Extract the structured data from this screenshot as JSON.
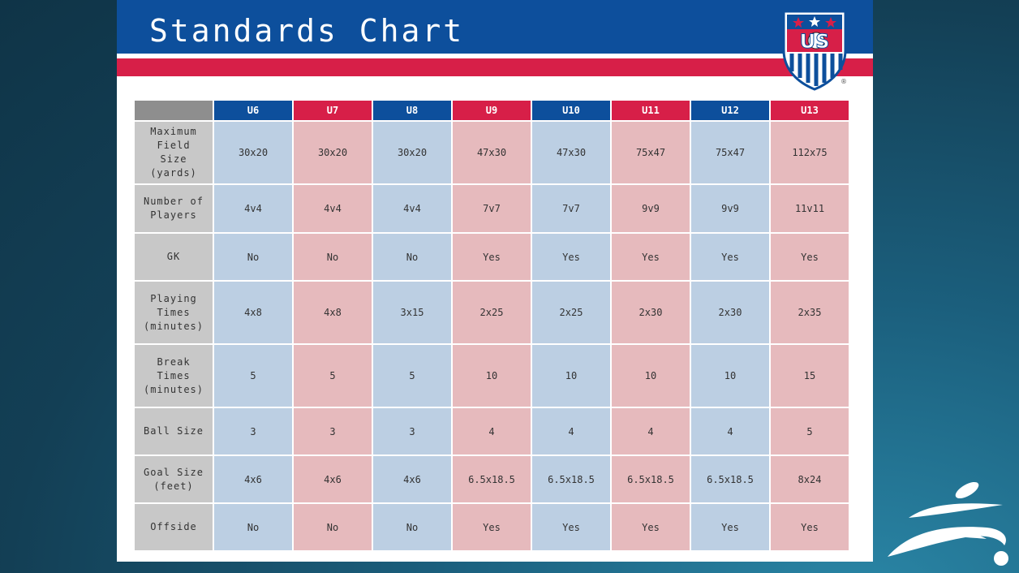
{
  "title": "Standards Chart",
  "crest": {
    "text": "US",
    "registered": "®"
  },
  "table": {
    "columns": [
      "U6",
      "U7",
      "U8",
      "U9",
      "U10",
      "U11",
      "U12",
      "U13"
    ],
    "rows": [
      {
        "label": "Maximum\nField\nSize\n(yards)",
        "values": [
          "30x20",
          "30x20",
          "30x20",
          "47x30",
          "47x30",
          "75x47",
          "75x47",
          "112x75"
        ]
      },
      {
        "label": "Number of\nPlayers",
        "values": [
          "4v4",
          "4v4",
          "4v4",
          "7v7",
          "7v7",
          "9v9",
          "9v9",
          "11v11"
        ]
      },
      {
        "label": "GK",
        "values": [
          "No",
          "No",
          "No",
          "Yes",
          "Yes",
          "Yes",
          "Yes",
          "Yes"
        ]
      },
      {
        "label": "Playing\nTimes\n(minutes)",
        "values": [
          "4x8",
          "4x8",
          "3x15",
          "2x25",
          "2x25",
          "2x30",
          "2x30",
          "2x35"
        ]
      },
      {
        "label": "Break\nTimes\n(minutes)",
        "values": [
          "5",
          "5",
          "5",
          "10",
          "10",
          "10",
          "10",
          "15"
        ]
      },
      {
        "label": "Ball Size",
        "values": [
          "3",
          "3",
          "3",
          "4",
          "4",
          "4",
          "4",
          "5"
        ]
      },
      {
        "label": "Goal Size\n(feet)",
        "values": [
          "4x6",
          "4x6",
          "4x6",
          "6.5x18.5",
          "6.5x18.5",
          "6.5x18.5",
          "6.5x18.5",
          "8x24"
        ]
      },
      {
        "label": "Offside",
        "values": [
          "No",
          "No",
          "No",
          "Yes",
          "Yes",
          "Yes",
          "Yes",
          "Yes"
        ]
      }
    ]
  },
  "colors": {
    "blue": "#0d4f9c",
    "red": "#d71f48",
    "cell_blue": "#bccfe3",
    "cell_red": "#e6babd",
    "row_header": "#c8c8c8"
  }
}
